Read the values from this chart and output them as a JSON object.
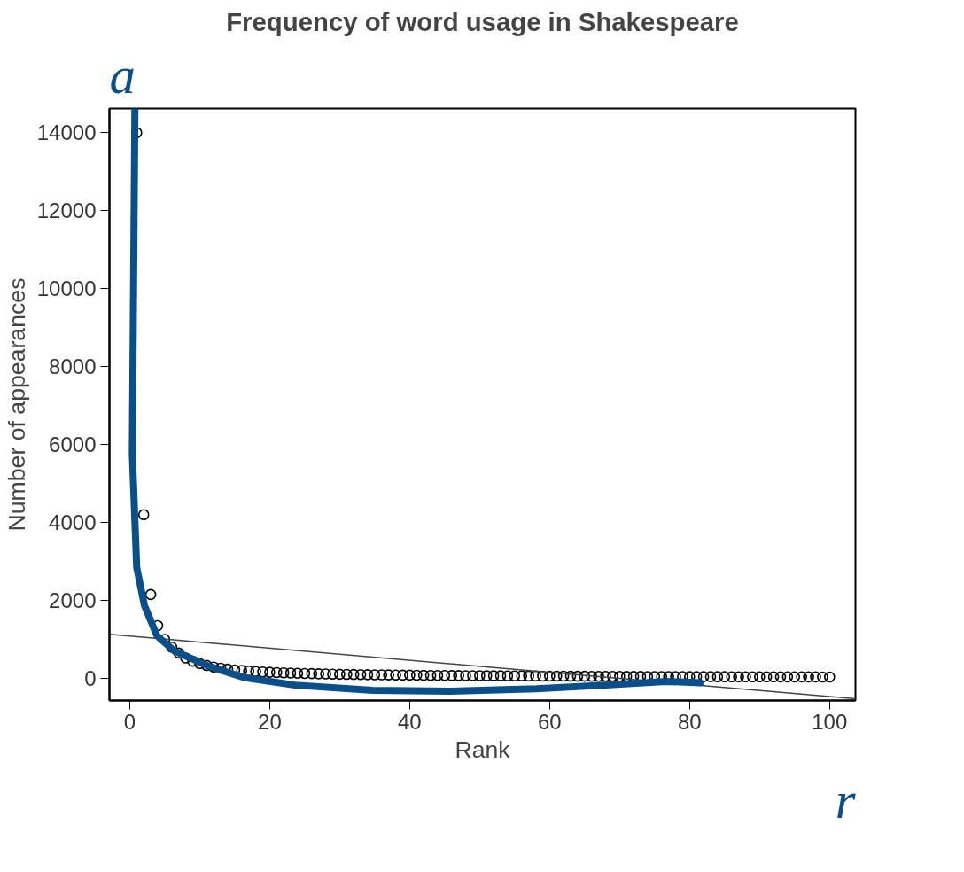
{
  "chart_data": {
    "type": "scatter",
    "title": "Frequency of word usage in Shakespeare",
    "xlabel": "Rank",
    "ylabel": "Number of appearances",
    "xlim": [
      -2.9,
      103.7
    ],
    "ylim": [
      -570,
      14620
    ],
    "xticks": [
      0,
      20,
      40,
      60,
      80,
      100
    ],
    "yticks": [
      0,
      2000,
      4000,
      6000,
      8000,
      10000,
      12000,
      14000
    ],
    "annotations": [
      "a",
      "r"
    ],
    "series": [
      {
        "marker": "circle",
        "color": "#000000",
        "x": [
          1,
          2,
          3,
          4,
          5,
          6,
          7,
          8,
          9,
          10,
          11,
          12,
          13,
          14,
          15,
          16,
          17,
          18,
          19,
          20,
          21,
          22,
          23,
          24,
          25,
          26,
          27,
          28,
          29,
          30,
          31,
          32,
          33,
          34,
          35,
          36,
          37,
          38,
          39,
          40,
          41,
          42,
          43,
          44,
          45,
          46,
          47,
          48,
          49,
          50,
          51,
          52,
          53,
          54,
          55,
          56,
          57,
          58,
          59,
          60,
          61,
          62,
          63,
          64,
          65,
          66,
          67,
          68,
          69,
          70,
          71,
          72,
          73,
          74,
          75,
          76,
          77,
          78,
          79,
          80,
          81,
          82,
          83,
          84,
          85,
          86,
          87,
          88,
          89,
          90,
          91,
          92,
          93,
          94,
          95,
          96,
          97,
          98,
          99,
          100
        ],
        "values": [
          14000,
          4200,
          2150,
          1350,
          1000,
          800,
          650,
          520,
          440,
          380,
          330,
          290,
          260,
          235,
          215,
          200,
          185,
          175,
          165,
          155,
          148,
          142,
          136,
          130,
          125,
          120,
          116,
          112,
          108,
          104,
          101,
          98,
          95,
          92,
          90,
          88,
          86,
          84,
          82,
          80,
          78,
          76,
          74,
          73,
          72,
          70,
          69,
          68,
          67,
          66,
          65,
          64,
          63,
          62,
          61,
          60,
          59,
          58,
          57,
          56,
          55,
          54,
          53,
          52,
          52,
          51,
          50,
          49,
          49,
          48,
          47,
          47,
          46,
          45,
          45,
          44,
          44,
          43,
          43,
          42,
          42,
          41,
          41,
          40,
          40,
          39,
          39,
          38,
          38,
          38,
          37,
          37,
          36,
          36,
          36,
          35,
          35,
          35,
          34,
          34
        ]
      },
      {
        "type": "line",
        "color": "#444444",
        "x": [
          -2.9,
          103.7
        ],
        "values": [
          1128,
          -524
        ]
      },
      {
        "type": "line",
        "color": "#0b4f8a",
        "x": [
          0.74,
          0.37,
          1.0,
          2.1,
          3.9,
          6.4,
          11.3,
          16.3,
          23.6,
          34.7,
          45.8,
          58.1,
          68.0,
          76.6,
          81.5
        ],
        "values": [
          14620,
          5760,
          2840,
          1870,
          1090,
          700,
          310,
          20,
          -175,
          -310,
          -330,
          -270,
          -175,
          -80,
          -115
        ]
      }
    ]
  }
}
